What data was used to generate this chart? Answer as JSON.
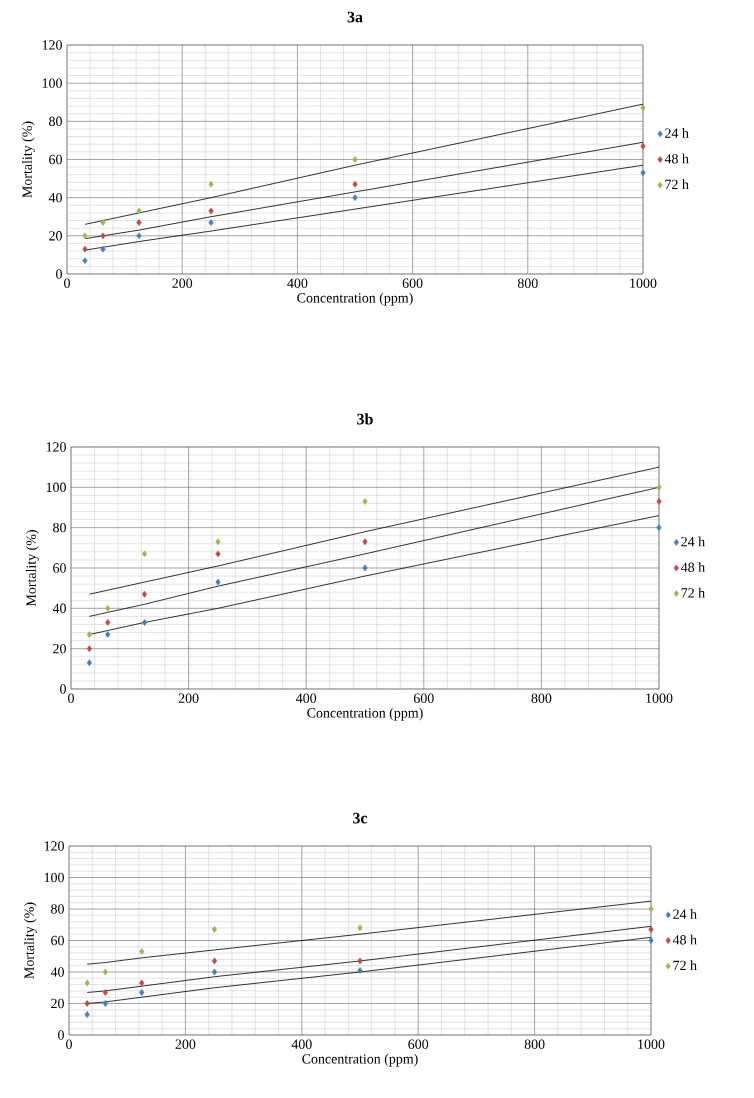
{
  "chart_data": [
    {
      "type": "scatter",
      "title": "3a",
      "xlabel": "Concentration (ppm)",
      "ylabel": "Mortality (%)",
      "x": [
        31.25,
        62.5,
        125,
        250,
        500,
        1000
      ],
      "xlim": [
        0,
        1000
      ],
      "ylim": [
        0,
        120
      ],
      "xticks": [
        0,
        200,
        400,
        600,
        800,
        1000
      ],
      "yticks": [
        0,
        20,
        40,
        60,
        80,
        100,
        120
      ],
      "grid": true,
      "legend": "right",
      "marker": "diamond",
      "series": [
        {
          "name": "24 h",
          "color": "#4a7ebb",
          "values": [
            7,
            13,
            20,
            27,
            40,
            53
          ]
        },
        {
          "name": "48 h",
          "color": "#be4b48",
          "values": [
            13,
            20,
            27,
            33,
            47,
            67
          ]
        },
        {
          "name": "72 h",
          "color": "#98b954",
          "values": [
            20,
            27,
            33,
            47,
            60,
            87
          ]
        },
        {
          "type": "line",
          "color": "#000000",
          "marker": "none",
          "values": [
            12.5,
            14,
            17,
            22.5,
            34,
            57
          ]
        },
        {
          "type": "line",
          "color": "#000000",
          "marker": "none",
          "values": [
            18.5,
            20,
            23,
            30,
            43,
            69
          ]
        },
        {
          "type": "line",
          "color": "#000000",
          "marker": "none",
          "values": [
            26,
            28,
            32,
            40,
            57,
            89
          ]
        }
      ]
    },
    {
      "type": "scatter",
      "title": "3b",
      "xlabel": "Concentration (ppm)",
      "ylabel": "Mortality (%)",
      "x": [
        31.25,
        62.5,
        125,
        250,
        500,
        1000
      ],
      "xlim": [
        0,
        1000
      ],
      "ylim": [
        0,
        120
      ],
      "xticks": [
        0,
        200,
        400,
        600,
        800,
        1000
      ],
      "yticks": [
        0,
        20,
        40,
        60,
        80,
        100,
        120
      ],
      "grid": true,
      "legend": "right",
      "marker": "diamond",
      "series": [
        {
          "name": "24 h",
          "color": "#4a7ebb",
          "values": [
            13,
            27,
            33,
            53,
            60,
            80
          ]
        },
        {
          "name": "48 h",
          "color": "#be4b48",
          "values": [
            20,
            33,
            47,
            67,
            73,
            93
          ]
        },
        {
          "name": "72 h",
          "color": "#98b954",
          "values": [
            27,
            40,
            67,
            73,
            93,
            100
          ]
        },
        {
          "type": "line",
          "color": "#000000",
          "marker": "none",
          "values": [
            27,
            29,
            33,
            40,
            56,
            86
          ]
        },
        {
          "type": "line",
          "color": "#000000",
          "marker": "none",
          "values": [
            36,
            38,
            42,
            51,
            67,
            100
          ]
        },
        {
          "type": "line",
          "color": "#000000",
          "marker": "none",
          "values": [
            47,
            49,
            53,
            61,
            78,
            110
          ]
        }
      ]
    },
    {
      "type": "scatter",
      "title": "3c",
      "xlabel": "Concentration (ppm)",
      "ylabel": "Mortality (%)",
      "x": [
        31.25,
        62.5,
        125,
        250,
        500,
        1000
      ],
      "xlim": [
        0,
        1000
      ],
      "ylim": [
        0,
        120
      ],
      "xticks": [
        0,
        200,
        400,
        600,
        800,
        1000
      ],
      "yticks": [
        0,
        20,
        40,
        60,
        80,
        100,
        120
      ],
      "grid": true,
      "legend": "right",
      "marker": "diamond",
      "series": [
        {
          "name": "24 h",
          "color": "#4a7ebb",
          "values": [
            13,
            20,
            27,
            40,
            41,
            60
          ]
        },
        {
          "name": "48 h",
          "color": "#be4b48",
          "values": [
            20,
            27,
            33,
            47,
            47,
            67
          ]
        },
        {
          "name": "72 h",
          "color": "#98b954",
          "values": [
            33,
            40,
            53,
            67,
            68,
            80
          ]
        },
        {
          "type": "line",
          "color": "#000000",
          "marker": "none",
          "values": [
            20,
            21,
            24,
            30,
            40,
            62
          ]
        },
        {
          "type": "line",
          "color": "#000000",
          "marker": "none",
          "values": [
            27,
            28,
            31,
            37,
            47,
            69
          ]
        },
        {
          "type": "line",
          "color": "#000000",
          "marker": "none",
          "values": [
            45,
            46,
            49,
            54,
            64,
            85
          ]
        }
      ]
    }
  ]
}
